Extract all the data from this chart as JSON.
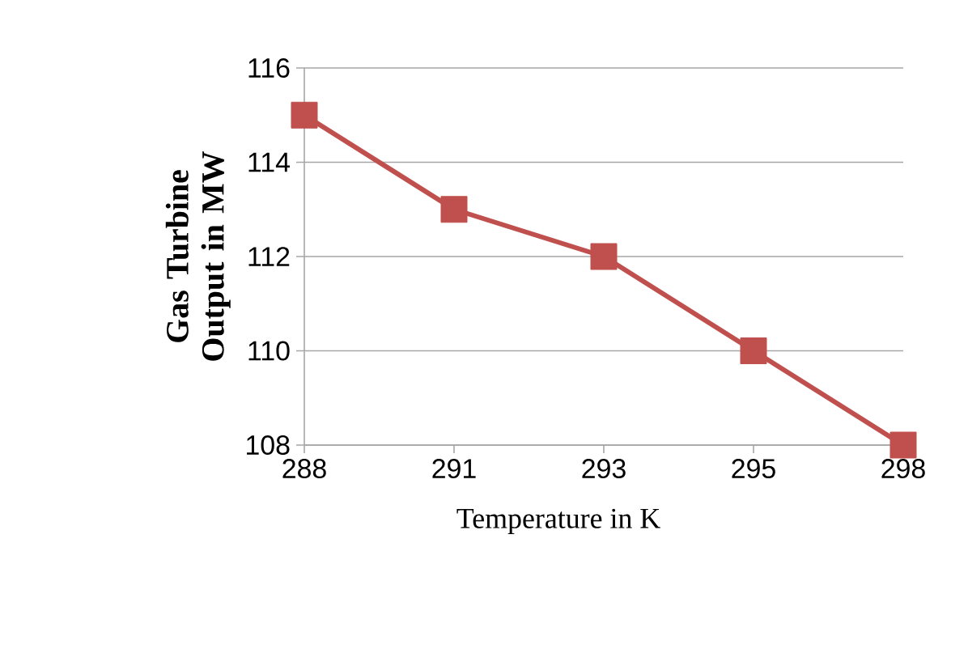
{
  "chart_data": {
    "type": "line",
    "xlabel": "Temperature in K",
    "ylabel": "Gas Turbine Output in MW",
    "categories": [
      "288",
      "291",
      "293",
      "295",
      "298"
    ],
    "series": [
      {
        "color": "#c0504d",
        "values": [
          115,
          113,
          112,
          110,
          108
        ]
      }
    ],
    "ylim": [
      108,
      116
    ],
    "yticks": [
      108,
      110,
      112,
      114,
      116
    ],
    "grid": "y",
    "marker": "square",
    "line_style": "solid"
  }
}
